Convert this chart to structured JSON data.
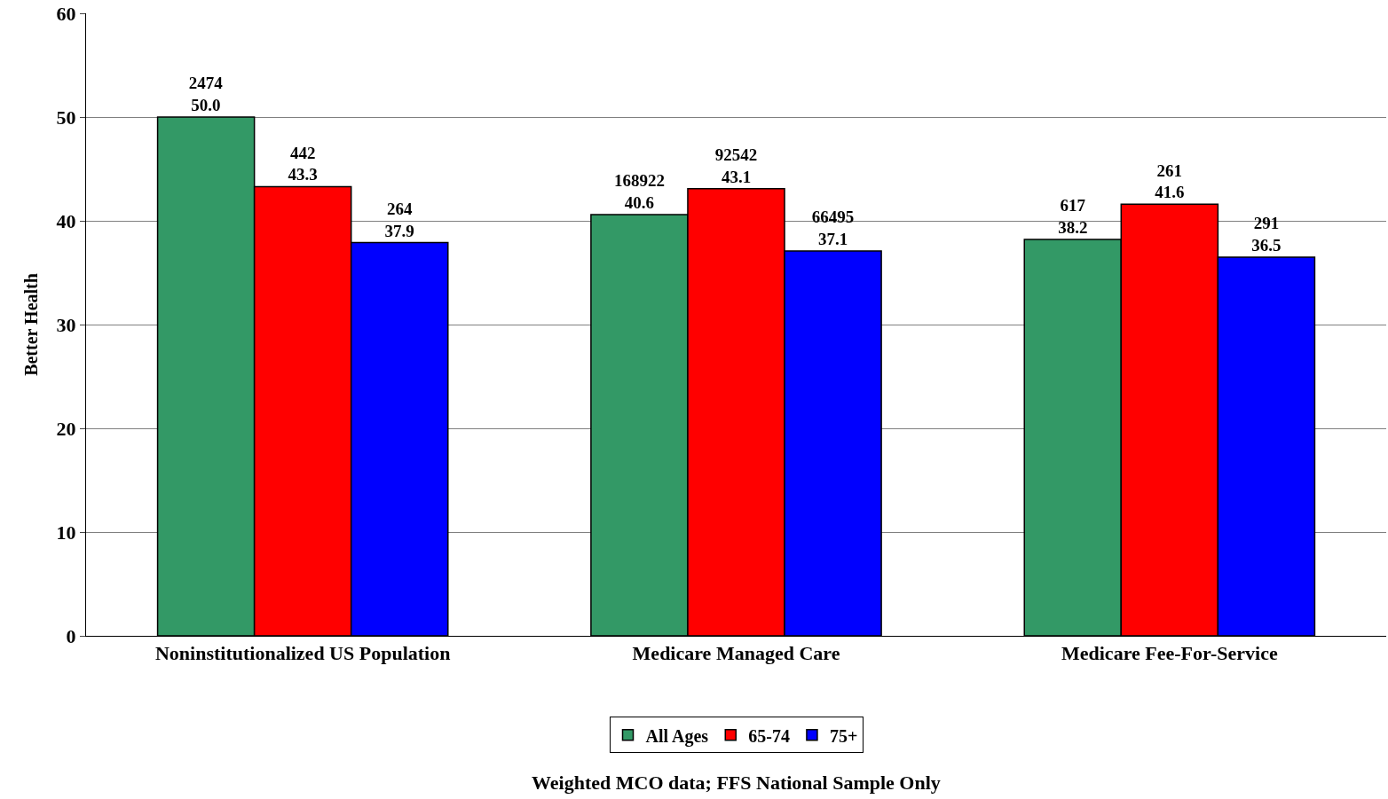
{
  "chart_data": {
    "type": "bar",
    "ylabel": "Better Health",
    "categories": [
      "Noninstitutionalized US Population",
      "Medicare Managed Care",
      "Medicare Fee-For-Service"
    ],
    "series": [
      {
        "name": "All Ages",
        "color": "#339966",
        "values": [
          50.0,
          40.6,
          38.2
        ],
        "value_labels": [
          "2474\n50.0",
          "168922\n40.6",
          "617\n38.2"
        ]
      },
      {
        "name": "65-74",
        "color": "#ff0000",
        "values": [
          43.3,
          43.1,
          41.6
        ],
        "value_labels": [
          "442\n43.3",
          "92542\n43.1",
          "261\n41.6"
        ]
      },
      {
        "name": "75+",
        "color": "#0000ff",
        "values": [
          37.9,
          37.1,
          36.5
        ],
        "value_labels": [
          "264\n37.9",
          "66495\n37.1",
          "291\n36.5"
        ]
      }
    ],
    "ylim": [
      0,
      60
    ],
    "yticks": [
      0,
      10,
      20,
      30,
      40,
      50,
      60
    ],
    "grid": "y",
    "legend": "bottom",
    "annotations": [
      "Weighted MCO data; FFS National Sample Only"
    ]
  }
}
